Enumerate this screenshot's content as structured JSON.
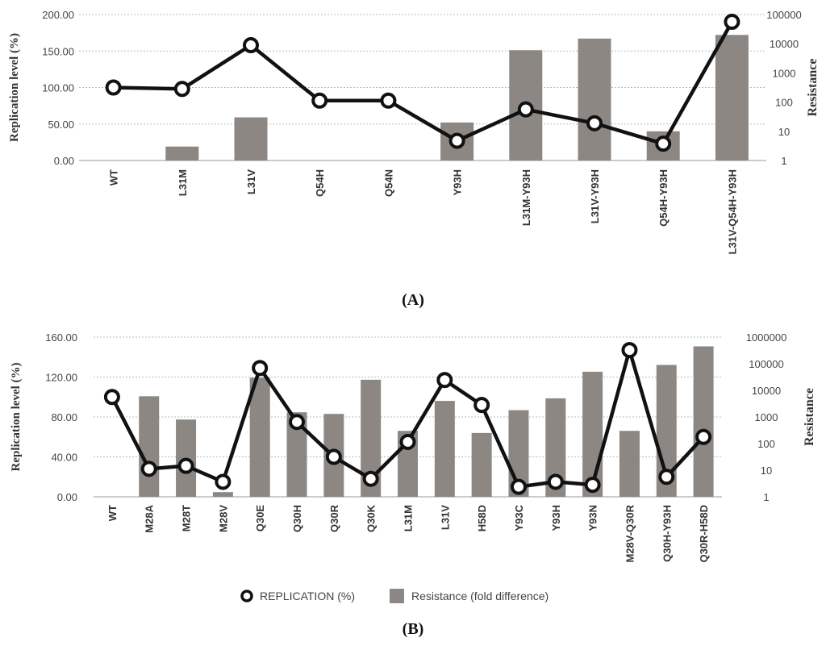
{
  "chart_data": [
    {
      "type": "bar+line",
      "panel_label": "(A)",
      "categories": [
        "WT",
        "L31M",
        "L31V",
        "Q54H",
        "Q54N",
        "Y93H",
        "L31M-Y93H",
        "L31V-Y93H",
        "Q54H-Y93H",
        "L31V-Q54H-Y93H"
      ],
      "ylabel_left": "Replication level (%)",
      "ylabel_right": "Resistance",
      "ylim_left": [
        0,
        200
      ],
      "yticks_left": [
        "0.00",
        "50.00",
        "100.00",
        "150.00",
        "200.00"
      ],
      "ylim_right": [
        1,
        100000
      ],
      "yscale_right": "log",
      "yticks_right": [
        "1",
        "10",
        "100",
        "1000",
        "10000",
        "100000"
      ],
      "grid": true,
      "series": [
        {
          "name": "REPLICATION (%)",
          "type": "line",
          "axis": "left",
          "values": [
            100,
            98,
            158,
            82,
            82,
            27,
            70,
            51,
            23,
            190
          ]
        },
        {
          "name": "Resistance (fold difference)",
          "type": "bar",
          "axis": "right",
          "values": [
            null,
            3,
            30,
            null,
            null,
            20,
            6000,
            15000,
            10,
            20000
          ]
        }
      ]
    },
    {
      "type": "bar+line",
      "panel_label": "(B)",
      "categories": [
        "WT",
        "M28A",
        "M28T",
        "M28V",
        "Q30E",
        "Q30H",
        "Q30R",
        "Q30K",
        "L31M",
        "L31V",
        "H58D",
        "Y93C",
        "Y93H",
        "Y93N",
        "M28V-Q30R",
        "Q30H-Y93H",
        "Q30R-H58D"
      ],
      "ylabel_left": "Replication level (%)",
      "ylabel_right": "Resistance",
      "ylim_left": [
        0,
        160
      ],
      "yticks_left": [
        "0.00",
        "40.00",
        "80.00",
        "120.00",
        "160.00"
      ],
      "ylim_right": [
        1,
        1000000
      ],
      "yscale_right": "log",
      "yticks_right": [
        "1",
        "10",
        "100",
        "1000",
        "10000",
        "100000",
        "1000000"
      ],
      "grid": true,
      "legend_position": "bottom",
      "series": [
        {
          "name": "REPLICATION (%)",
          "type": "line",
          "axis": "left",
          "values": [
            100,
            28,
            31,
            15,
            129,
            75,
            40,
            18,
            55,
            117,
            92,
            10,
            15,
            12,
            147,
            20,
            60
          ]
        },
        {
          "name": "Resistance (fold difference)",
          "type": "bar",
          "axis": "right",
          "values": [
            null,
            6000,
            800,
            1.5,
            30000,
            1500,
            1300,
            25000,
            300,
            4000,
            250,
            1800,
            5000,
            50000,
            300,
            90000,
            450000
          ]
        }
      ]
    }
  ]
}
